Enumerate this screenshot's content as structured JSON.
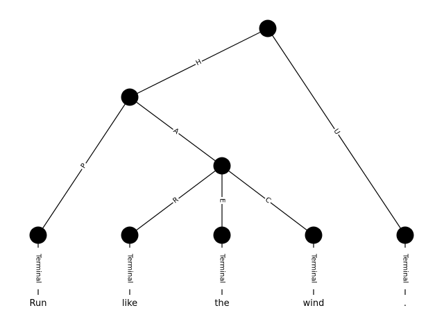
{
  "diagram": {
    "type": "tree",
    "nodes": [
      {
        "id": "root"
      },
      {
        "id": "n1"
      },
      {
        "id": "n2"
      },
      {
        "id": "t_run"
      },
      {
        "id": "t_like"
      },
      {
        "id": "t_the"
      },
      {
        "id": "t_wind"
      },
      {
        "id": "t_period"
      }
    ],
    "edges": [
      {
        "from": "root",
        "to": "n1",
        "label": "H"
      },
      {
        "from": "root",
        "to": "t_period",
        "label": "U"
      },
      {
        "from": "n1",
        "to": "t_run",
        "label": "P"
      },
      {
        "from": "n1",
        "to": "n2",
        "label": "A"
      },
      {
        "from": "n2",
        "to": "t_like",
        "label": "R"
      },
      {
        "from": "n2",
        "to": "t_the",
        "label": "E"
      },
      {
        "from": "n2",
        "to": "t_wind",
        "label": "C"
      }
    ],
    "terminals": [
      {
        "node": "t_run",
        "type_label": "Terminal",
        "word": "Run"
      },
      {
        "node": "t_like",
        "type_label": "Terminal",
        "word": "like"
      },
      {
        "node": "t_the",
        "type_label": "Terminal",
        "word": "the"
      },
      {
        "node": "t_wind",
        "type_label": "Terminal",
        "word": "wind"
      },
      {
        "node": "t_period",
        "type_label": "Terminal",
        "word": "."
      }
    ]
  }
}
